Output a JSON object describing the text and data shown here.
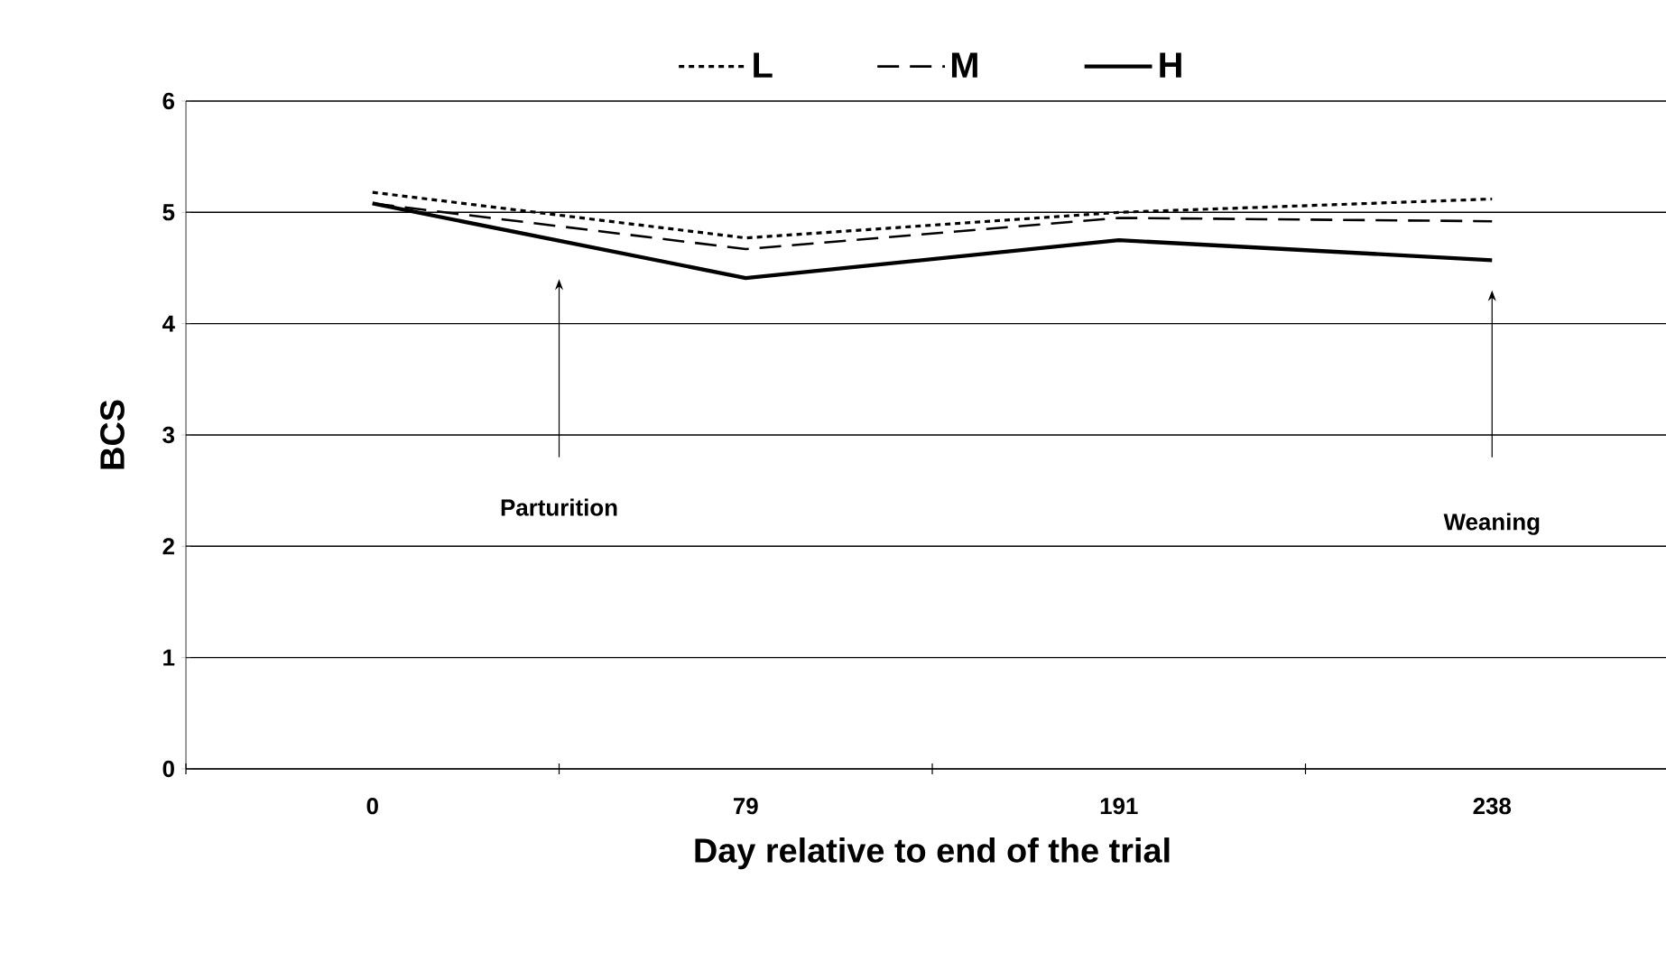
{
  "chart_data": {
    "type": "line",
    "xlabel": "Day relative to end of the trial",
    "ylabel": "BCS",
    "categories": [
      "0",
      "79",
      "191",
      "238"
    ],
    "series": [
      {
        "name": "L",
        "color": "#000000",
        "line_style": "dotted",
        "values": [
          5.18,
          4.77,
          5.0,
          5.12
        ]
      },
      {
        "name": "M",
        "color": "#000000",
        "line_style": "dashed",
        "values": [
          5.08,
          4.67,
          4.95,
          4.92
        ]
      },
      {
        "name": "H",
        "color": "#000000",
        "line_style": "solid",
        "values": [
          5.08,
          4.41,
          4.75,
          4.57
        ]
      }
    ],
    "ylim": [
      0,
      6
    ],
    "yticks": [
      0,
      1,
      2,
      3,
      4,
      5,
      6
    ],
    "grid": "y",
    "legend": "top",
    "marker": "none",
    "annotations": [
      "Parturition",
      "Weaning"
    ]
  }
}
